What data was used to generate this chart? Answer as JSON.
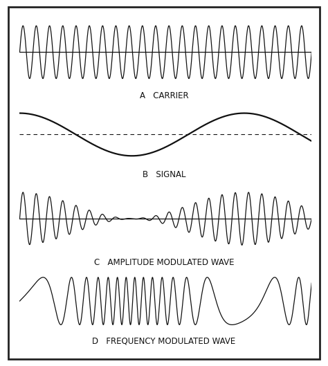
{
  "background_color": "#ffffff",
  "border_color": "#222222",
  "line_color": "#111111",
  "carrier_freq": 22,
  "signal_freq": 1.3,
  "label_a": "A   CARRIER",
  "label_b": "B   SIGNAL",
  "label_c": "C   AMPLITUDE MODULATED WAVE",
  "label_d": "D   FREQUENCY MODULATED WAVE",
  "label_fontsize": 8.5,
  "fm_base_freq": 18,
  "fm_deviation": 16,
  "am_carrier_freq": 22,
  "am_signal_freq": 1.3
}
